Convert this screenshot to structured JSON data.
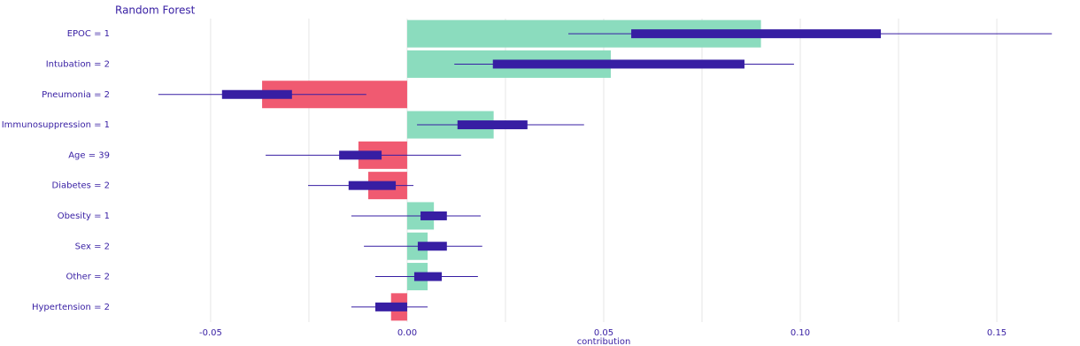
{
  "chart_data": {
    "type": "breakdown-box",
    "title": "Random Forest",
    "x_label": "contribution",
    "categories": [
      "EPOC = 1",
      "Intubation = 2",
      "Pneumonia = 2",
      "Immunosuppression = 1",
      "Age = 39",
      "Diabetes = 2",
      "Obesity = 1",
      "Sex = 2",
      "Other = 2",
      "Hypertension = 2"
    ],
    "values": [
      0.09,
      0.0518,
      -0.0369,
      0.022,
      -0.0124,
      -0.0099,
      0.0068,
      0.0052,
      0.0052,
      -0.0041
    ],
    "box_min": [
      0.041,
      0.012,
      -0.0633,
      0.0025,
      -0.036,
      -0.0252,
      -0.0142,
      -0.011,
      -0.0081,
      -0.0142
    ],
    "box_q1": [
      0.057,
      0.0218,
      -0.0471,
      0.0128,
      -0.0173,
      -0.0149,
      0.0034,
      0.0027,
      0.0018,
      -0.0081
    ],
    "box_q3": [
      0.1205,
      0.0858,
      -0.0293,
      0.0306,
      -0.0065,
      -0.0029,
      0.0101,
      0.0101,
      0.0088,
      0.0
    ],
    "box_max": [
      0.164,
      0.0984,
      -0.0104,
      0.045,
      0.0137,
      0.0016,
      0.0187,
      0.0191,
      0.018,
      0.0052
    ],
    "positive_color": "#8bdcbe",
    "negative_color": "#f05a71",
    "box_color": "#371ea3",
    "xlim": [
      -0.0743,
      0.1644
    ],
    "xticks": [
      {
        "value": -0.05,
        "label": "-0.05"
      },
      {
        "value": 0,
        "label": "0.00"
      },
      {
        "value": 0.05,
        "label": "0.05"
      },
      {
        "value": 0.1,
        "label": "0.10"
      },
      {
        "value": 0.15,
        "label": "0.15"
      }
    ],
    "minor_gridlines": [
      -0.025,
      0.025,
      0.075,
      0.125
    ],
    "grid": true
  }
}
